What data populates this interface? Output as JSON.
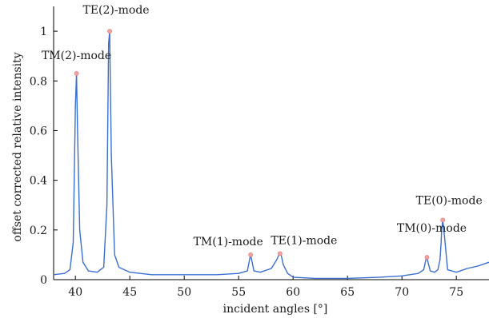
{
  "chart_data": {
    "type": "line",
    "xlabel": "incident angles [°]",
    "ylabel": "offset corrected relative intensity",
    "xlim": [
      38,
      78
    ],
    "ylim": [
      0,
      1.1
    ],
    "xticks": [
      40,
      45,
      50,
      55,
      60,
      65,
      70,
      75
    ],
    "yticks": [
      0,
      0.2,
      0.4,
      0.6,
      0.8,
      1
    ],
    "line_color": "#3a6fd1",
    "marker_color": "#f2a0a0",
    "series": [
      {
        "x": [
          38.0,
          39.0,
          39.5,
          39.8,
          40.0,
          40.1,
          40.2,
          40.4,
          40.7,
          41.2,
          42.0,
          42.6,
          42.9,
          43.05,
          43.15,
          43.3,
          43.6,
          44.0,
          45.0,
          47.0,
          50.0,
          53.0,
          55.0,
          55.8,
          56.0,
          56.1,
          56.2,
          56.4,
          57.0,
          58.0,
          58.5,
          58.7,
          58.8,
          58.9,
          59.1,
          59.5,
          60.0,
          62.0,
          65.0,
          68.0,
          70.0,
          71.5,
          72.0,
          72.2,
          72.3,
          72.4,
          72.6,
          73.0,
          73.3,
          73.5,
          73.6,
          73.65,
          73.75,
          73.9,
          74.2,
          75.0,
          76.0,
          77.0,
          78.0
        ],
        "y": [
          0.02,
          0.025,
          0.04,
          0.15,
          0.7,
          0.83,
          0.6,
          0.2,
          0.07,
          0.035,
          0.03,
          0.05,
          0.3,
          0.95,
          1.0,
          0.5,
          0.1,
          0.05,
          0.03,
          0.02,
          0.02,
          0.02,
          0.025,
          0.035,
          0.08,
          0.1,
          0.08,
          0.035,
          0.03,
          0.045,
          0.08,
          0.1,
          0.105,
          0.1,
          0.06,
          0.025,
          0.01,
          0.005,
          0.005,
          0.01,
          0.015,
          0.025,
          0.04,
          0.08,
          0.09,
          0.07,
          0.035,
          0.03,
          0.04,
          0.08,
          0.15,
          0.2,
          0.24,
          0.18,
          0.04,
          0.03,
          0.045,
          0.055,
          0.07
        ]
      }
    ],
    "peaks": [
      {
        "label": "TM(2)-mode",
        "x": 40.1,
        "y": 0.83
      },
      {
        "label": "TE(2)-mode",
        "x": 43.15,
        "y": 1.0
      },
      {
        "label": "TM(1)-mode",
        "x": 56.1,
        "y": 0.1
      },
      {
        "label": "TE(1)-mode",
        "x": 58.8,
        "y": 0.105
      },
      {
        "label": "TM(0)-mode",
        "x": 72.3,
        "y": 0.09
      },
      {
        "label": "TE(0)-mode",
        "x": 73.75,
        "y": 0.24
      }
    ]
  }
}
